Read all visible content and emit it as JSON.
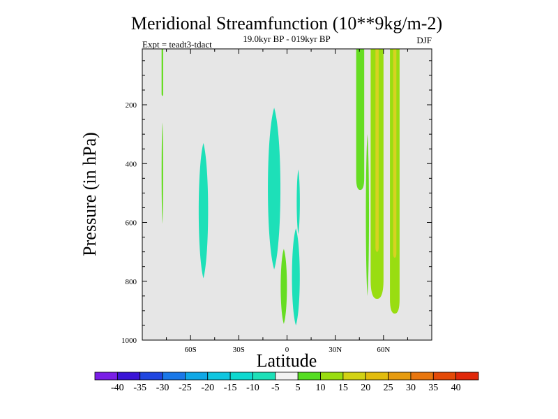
{
  "chart_data": {
    "type": "contour",
    "title": "Meridional Streamfunction (10**9kg/m-2)",
    "subtitle": "19.0kyr BP - 019kyr BP",
    "experiment": "Expt = teadt3-tdact",
    "season": "DJF",
    "xlabel": "Latitude",
    "ylabel": "Pressure (in hPa)",
    "xlim": [
      -90,
      90
    ],
    "ylim": [
      1000,
      10
    ],
    "x_ticks": [
      {
        "value": -60,
        "label": "60S"
      },
      {
        "value": -30,
        "label": "30S"
      },
      {
        "value": 0,
        "label": "0"
      },
      {
        "value": 30,
        "label": "30N"
      },
      {
        "value": 60,
        "label": "60N"
      }
    ],
    "y_ticks": [
      {
        "value": 200,
        "label": "200"
      },
      {
        "value": 400,
        "label": "400"
      },
      {
        "value": 600,
        "label": "600"
      },
      {
        "value": 800,
        "label": "800"
      },
      {
        "value": 1000,
        "label": "1000"
      }
    ],
    "background_color": "#e6e6e6",
    "features": [
      {
        "name": "sh-high-lat-strip",
        "sign": "positive",
        "level": 5,
        "lat_min": -78,
        "lat_max": -77,
        "p_top": 10,
        "p_bottom": 170,
        "color": "#66dd22"
      },
      {
        "name": "sh-high-lat-strip-lower",
        "sign": "positive",
        "level": 5,
        "lat_min": -78,
        "lat_max": -77,
        "p_top": 260,
        "p_bottom": 605,
        "color": "#66dd22"
      },
      {
        "name": "cell-50S",
        "sign": "negative",
        "level": -5,
        "lat_min": -55,
        "lat_max": -49,
        "p_top": 330,
        "p_bottom": 790,
        "color": "#1de0b8"
      },
      {
        "name": "cell-8S",
        "sign": "negative",
        "level": -5,
        "lat_min": -12,
        "lat_max": -4,
        "p_top": 210,
        "p_bottom": 760,
        "color": "#1de0b8"
      },
      {
        "name": "cell-eq-lower",
        "sign": "positive",
        "level": 5,
        "lat_min": -4,
        "lat_max": 0,
        "p_top": 690,
        "p_bottom": 945,
        "color": "#66dd22"
      },
      {
        "name": "cell-5N",
        "sign": "negative",
        "level": -5,
        "lat_min": 3,
        "lat_max": 8,
        "p_top": 620,
        "p_bottom": 950,
        "color": "#1de0b8"
      },
      {
        "name": "cell-eq-thin",
        "sign": "negative",
        "level": -5,
        "lat_min": 6,
        "lat_max": 8,
        "p_top": 420,
        "p_bottom": 640,
        "color": "#1de0b8"
      },
      {
        "name": "nh-band-45N",
        "sign": "positive",
        "level": 5,
        "lat_min": 43,
        "lat_max": 48,
        "p_top": 10,
        "p_bottom": 490,
        "color": "#66dd22"
      },
      {
        "name": "nh-band-50N-lower",
        "sign": "positive",
        "level": 5,
        "lat_min": 49,
        "lat_max": 51,
        "p_top": 300,
        "p_bottom": 850,
        "color": "#66dd22"
      },
      {
        "name": "nh-band-55N",
        "sign": "positive",
        "level": 10,
        "lat_min": 52,
        "lat_max": 60,
        "p_top": 10,
        "p_bottom": 860,
        "color": "#99dd11"
      },
      {
        "name": "nh-band-55N-core",
        "sign": "positive",
        "level": 15,
        "lat_min": 55,
        "lat_max": 57,
        "p_top": 10,
        "p_bottom": 700,
        "color": "#d7d222"
      },
      {
        "name": "nh-band-66N",
        "sign": "positive",
        "level": 10,
        "lat_min": 64,
        "lat_max": 70,
        "p_top": 10,
        "p_bottom": 910,
        "color": "#99dd11"
      },
      {
        "name": "nh-band-66N-core",
        "sign": "positive",
        "level": 15,
        "lat_min": 66,
        "lat_max": 68,
        "p_top": 10,
        "p_bottom": 720,
        "color": "#d7d222"
      }
    ],
    "colorbar": {
      "levels": [
        "-40",
        "-35",
        "-30",
        "-25",
        "-20",
        "-15",
        "-10",
        "-5",
        "5",
        "10",
        "15",
        "20",
        "25",
        "30",
        "35",
        "40"
      ],
      "colors": [
        "#7a1ee6",
        "#3a14d6",
        "#2046e0",
        "#1a78e8",
        "#10a8e6",
        "#10c6e0",
        "#0ed9d0",
        "#1de0b8",
        "#f2f2f2",
        "#55dd22",
        "#99dd11",
        "#d2d214",
        "#e2bc0e",
        "#e69b10",
        "#e8760e",
        "#e44a08",
        "#e0280a"
      ]
    }
  }
}
